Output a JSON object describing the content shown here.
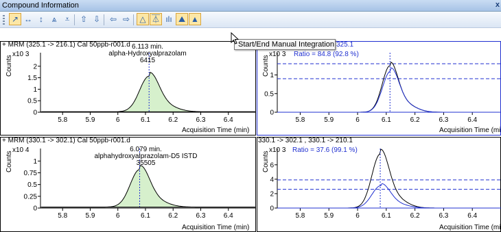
{
  "window": {
    "title": "Compound Information",
    "close_glyph": "x"
  },
  "toolbar": {
    "buttons": [
      {
        "icon": "cursor-arrow-icon",
        "glyph": "↗",
        "active": true
      },
      {
        "icon": "horizontal-zoom-icon",
        "glyph": "↔",
        "active": false
      },
      {
        "icon": "vertical-zoom-icon",
        "glyph": "↕",
        "active": false
      },
      {
        "icon": "peak-zoom-icon",
        "glyph": "⩓",
        "active": false
      },
      {
        "icon": "baseline-icon",
        "glyph": "⩡",
        "active": false
      },
      {
        "icon": "scale-up-icon",
        "glyph": "⇧",
        "active": false
      },
      {
        "icon": "scale-down-icon",
        "glyph": "⇩",
        "active": false
      },
      {
        "icon": "previous-icon",
        "glyph": "⇦",
        "active": false
      },
      {
        "icon": "next-icon",
        "glyph": "⇨",
        "active": false
      },
      {
        "icon": "peak-fill-icon",
        "glyph": "△",
        "active": true
      },
      {
        "icon": "integration-icon",
        "glyph": "⏄",
        "active": true
      },
      {
        "icon": "spectrum-icon",
        "glyph": "ılı",
        "active": false
      },
      {
        "icon": "overlay-icon",
        "glyph": "⛰",
        "active": true
      },
      {
        "icon": "manual-integration-icon",
        "glyph": "▲",
        "active": true
      }
    ],
    "tooltip": "Start/End Manual Integration"
  },
  "colors": {
    "fill": "#d6f0cc",
    "qualifier": "#1f2fd0",
    "rt_line": "#1f2fd0",
    "curve": "#000000"
  },
  "panes": [
    {
      "title": "+ MRM (325.1 -> 216.1) Cal 50ppb-r001.d",
      "ylabel": "Counts",
      "multiplier": "x10 3",
      "annotation": [
        "6.113 min.",
        "alpha-Hydroxyalprazolam",
        "6415"
      ],
      "x_ticks": [
        "5.8",
        "5.9",
        "6",
        "6.1",
        "6.2",
        "6.3",
        "6.4"
      ],
      "y_ticks": [
        "2",
        "1.5",
        "1",
        "0.5",
        "0"
      ],
      "xlabel": "Acquisition Time (min)"
    },
    {
      "title": "325.1 -> 216.1 , 325.1 -> 180.1",
      "title_visible": "325.1",
      "ylabel": "Counts",
      "multiplier": "x10 3",
      "ratio": "Ratio = 84.8 (92.8 %)",
      "x_ticks": [
        "5.8",
        "5.9",
        "6",
        "6.1",
        "6.2",
        "6.3",
        "6.4"
      ],
      "y_ticks": [
        "1",
        "0.5",
        "0"
      ],
      "xlabel": "Acquisition Time (min"
    },
    {
      "title": "+ MRM (330.1 -> 302.1) Cal 50ppb-r001.d",
      "ylabel": "Counts",
      "multiplier": "x10 4",
      "annotation": [
        "6.079 min.",
        "alphahydroxyalprazolam-D5 ISTD",
        "35505"
      ],
      "x_ticks": [
        "5.8",
        "5.9",
        "6",
        "6.1",
        "6.2",
        "6.3",
        "6.4"
      ],
      "y_ticks": [
        "1",
        "0.75",
        "0.5",
        "0.25",
        "0"
      ],
      "xlabel": "Acquisition Time (min)"
    },
    {
      "title": "330.1 -> 302.1 , 330.1 -> 210.1",
      "ylabel": "Counts",
      "multiplier": "x10 3",
      "ratio": "Ratio = 37.6 (99.1 %)",
      "x_ticks": [
        "5.8",
        "5.9",
        "6",
        "6.1",
        "6.2",
        "6.3",
        "6.4"
      ],
      "y_ticks": [
        "6",
        "4",
        "2",
        "0"
      ],
      "xlabel": "Acquisition Time (min"
    }
  ]
}
